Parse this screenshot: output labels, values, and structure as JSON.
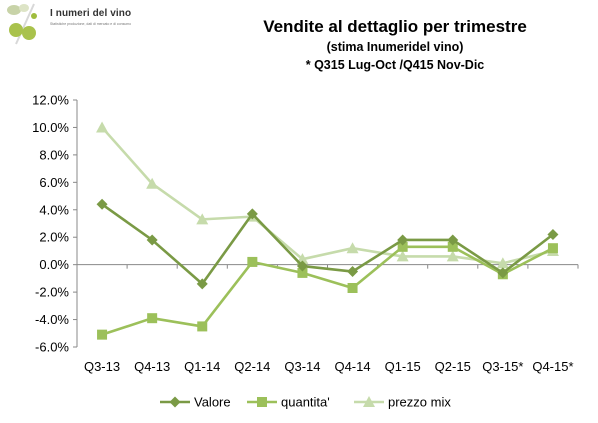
{
  "logo": {
    "name": "I numeri del vino",
    "tagline": "Statistiche produzione, dati di mercato e di consumo"
  },
  "chart_data": {
    "type": "line",
    "title": "Vendite al dettaglio per trimestre",
    "subtitle": "(stima Inumeridel vino)",
    "note": "* Q315 Lug-Oct /Q415 Nov-Dic",
    "categories": [
      "Q3-13",
      "Q4-13",
      "Q1-14",
      "Q2-14",
      "Q3-14",
      "Q4-14",
      "Q1-15",
      "Q2-15",
      "Q3-15*",
      "Q4-15*"
    ],
    "series": [
      {
        "name": "Valore",
        "marker": "diamond",
        "color": "#7a9a45",
        "values": [
          4.4,
          1.8,
          -1.4,
          3.7,
          -0.1,
          -0.5,
          1.8,
          1.8,
          -0.6,
          2.2
        ]
      },
      {
        "name": "quantita'",
        "marker": "square",
        "color": "#9cc05a",
        "values": [
          -5.1,
          -3.9,
          -4.5,
          0.2,
          -0.6,
          -1.7,
          1.3,
          1.3,
          -0.7,
          1.2
        ]
      },
      {
        "name": "prezzo mix",
        "marker": "triangle",
        "color": "#c6dbab",
        "values": [
          10.0,
          5.9,
          3.3,
          3.5,
          0.4,
          1.2,
          0.6,
          0.6,
          0.1,
          1.0
        ]
      }
    ],
    "ylim": [
      -6,
      12
    ],
    "ytick_step": 2,
    "ytick_format": "percent_1dp",
    "grid": false,
    "legend": "bottom"
  }
}
